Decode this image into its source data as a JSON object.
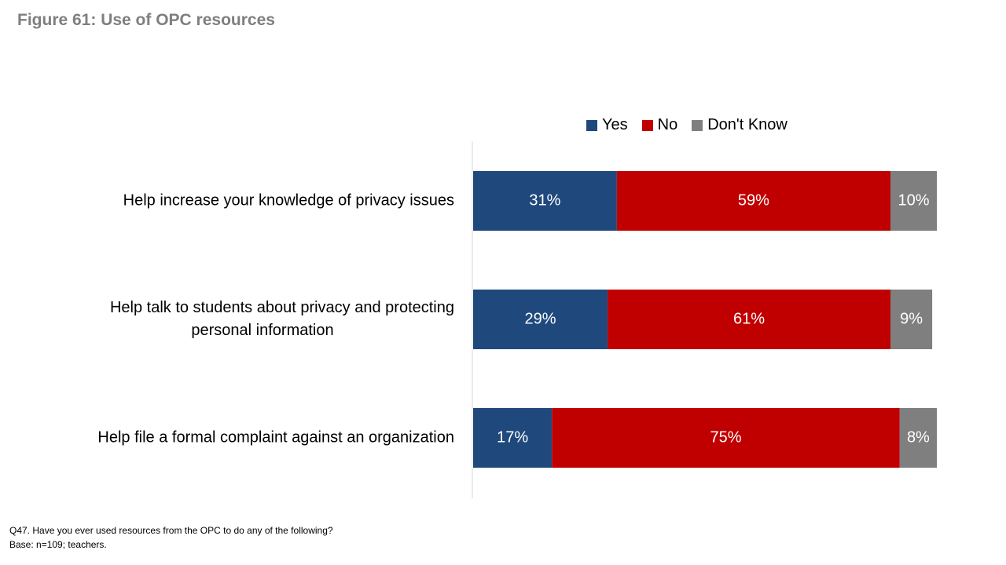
{
  "title": "Figure 61: Use of OPC resources",
  "footnote": {
    "question": "Q47. Have you ever used resources from the OPC to do any of the following?",
    "base": "Base: n=109; teachers."
  },
  "colors": {
    "yes": "#1f497d",
    "no": "#c00000",
    "dont_know": "#7f7f7f"
  },
  "chart_data": {
    "type": "bar",
    "orientation": "horizontal",
    "stacked": true,
    "categories": [
      [
        "Help increase your knowledge of privacy issues"
      ],
      [
        "Help talk to students about privacy and protecting",
        "personal information"
      ],
      [
        "Help file a formal complaint against an organization"
      ]
    ],
    "series": [
      {
        "name": "Yes",
        "values": [
          31,
          29,
          17
        ],
        "labels": [
          "31%",
          "29%",
          "17%"
        ]
      },
      {
        "name": "No",
        "values": [
          59,
          61,
          75
        ],
        "labels": [
          "59%",
          "61%",
          "75%"
        ]
      },
      {
        "name": "Don't Know",
        "values": [
          10,
          9,
          8
        ],
        "labels": [
          "10%",
          "9%",
          "8%"
        ]
      }
    ],
    "xlim": [
      0,
      100
    ],
    "legend": "top",
    "grid": false
  }
}
